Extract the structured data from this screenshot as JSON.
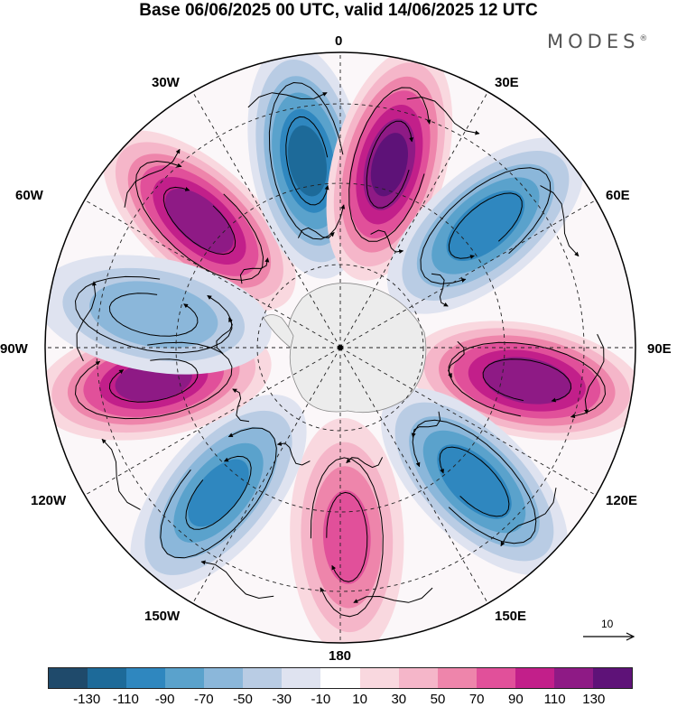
{
  "title": "Base 06/06/2025 00 UTC, valid 14/06/2025 12 UTC",
  "brand": "MODES",
  "brand_mark": "®",
  "map": {
    "projection": "south-polar-stereographic",
    "longitude_labels": [
      "0",
      "30E",
      "60E",
      "90E",
      "120E",
      "150E",
      "180",
      "150W",
      "120W",
      "90W",
      "60W",
      "30W"
    ],
    "wind_vector_reference": "10",
    "field_features": [
      {
        "longitude": -48,
        "sign": "positive",
        "magnitude": 130
      },
      {
        "longitude": -10,
        "sign": "negative",
        "magnitude": 120
      },
      {
        "longitude": 15,
        "sign": "positive",
        "magnitude": 140
      },
      {
        "longitude": 50,
        "sign": "negative",
        "magnitude": 110
      },
      {
        "longitude": 100,
        "sign": "positive",
        "magnitude": 135
      },
      {
        "longitude": 135,
        "sign": "negative",
        "magnitude": 110
      },
      {
        "longitude": 178,
        "sign": "positive",
        "magnitude": 80
      },
      {
        "longitude": -140,
        "sign": "negative",
        "magnitude": 100
      },
      {
        "longitude": -100,
        "sign": "positive",
        "magnitude": 125
      },
      {
        "longitude": -80,
        "sign": "negative",
        "magnitude": 70
      }
    ]
  },
  "colorbar": {
    "colors": [
      "#1f4a6b",
      "#1d6a99",
      "#2f87bf",
      "#5aa2cc",
      "#8bb7da",
      "#b9cce4",
      "#dfe3f0",
      "#ffffff",
      "#f9d8df",
      "#f5b6c9",
      "#ee85ab",
      "#e1509a",
      "#c21f8a",
      "#8e1a85",
      "#5e1278"
    ],
    "tick_labels": [
      "-130",
      "-110",
      "-90",
      "-70",
      "-50",
      "-30",
      "-10",
      "10",
      "30",
      "50",
      "70",
      "90",
      "110",
      "130"
    ]
  }
}
